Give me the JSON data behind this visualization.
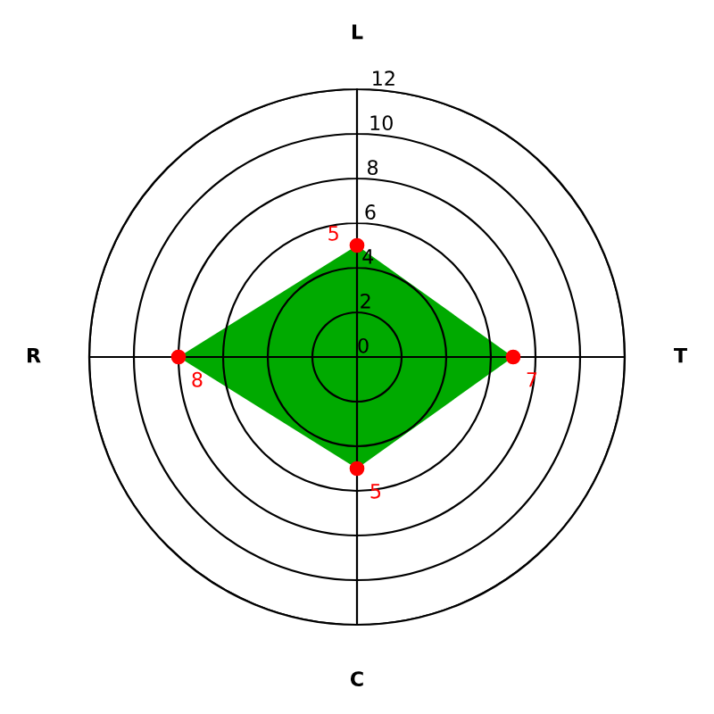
{
  "chart_data": {
    "type": "radar",
    "categories": [
      "L",
      "T",
      "C",
      "R"
    ],
    "series": [
      {
        "color": "#00aa00",
        "colors": [
          "#ff0000",
          "#ff0000",
          "#ff0000",
          "#ff0000"
        ],
        "values": [
          5,
          7,
          5,
          8
        ]
      }
    ],
    "ylim": [
      0,
      12
    ],
    "yticks": [
      0,
      2,
      4,
      6,
      8,
      10,
      12
    ],
    "grid": true,
    "marker": "circle",
    "data_labels": true
  }
}
